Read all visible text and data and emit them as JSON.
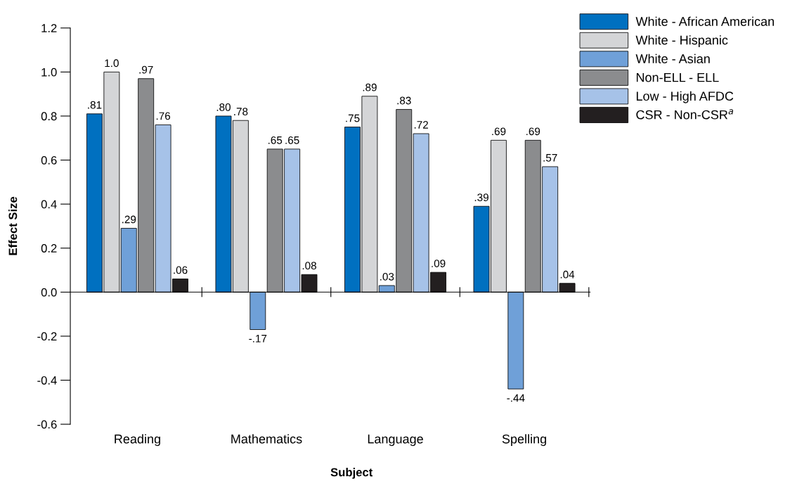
{
  "chart_data": {
    "type": "bar",
    "xlabel": "Subject",
    "ylabel": "Effect Size",
    "categories": [
      "Reading",
      "Mathematics",
      "Language",
      "Spelling"
    ],
    "series": [
      {
        "name": "White - African American",
        "color": "#0070c0",
        "values": [
          0.81,
          0.8,
          0.75,
          0.39
        ],
        "value_labels": [
          ".81",
          ".80",
          ".75",
          ".39"
        ]
      },
      {
        "name": "White - Hispanic",
        "color": "#d4d5d7",
        "values": [
          1.0,
          0.78,
          0.89,
          0.69
        ],
        "value_labels": [
          "1.0",
          ".78",
          ".89",
          ".69"
        ]
      },
      {
        "name": "White - Asian",
        "color": "#6fa0d8",
        "values": [
          0.29,
          -0.17,
          0.03,
          -0.44
        ],
        "value_labels": [
          ".29",
          "-.17",
          ".03",
          "-.44"
        ]
      },
      {
        "name": "Non-ELL - ELL",
        "color": "#8b8c8e",
        "values": [
          0.97,
          0.65,
          0.83,
          0.69
        ],
        "value_labels": [
          ".97",
          ".65",
          ".83",
          ".69"
        ]
      },
      {
        "name": "Low - High AFDC",
        "color": "#a6c2e8",
        "values": [
          0.76,
          0.65,
          0.72,
          0.57
        ],
        "value_labels": [
          ".76",
          ".65",
          ".72",
          ".57"
        ]
      },
      {
        "name": "CSR - Non-CSR$^{a}$",
        "color": "#231f20",
        "values": [
          0.06,
          0.08,
          0.09,
          0.04
        ],
        "value_labels": [
          ".06",
          ".08",
          ".09",
          ".04"
        ]
      }
    ],
    "ylim": [
      -0.6,
      1.2
    ],
    "yticks": [
      {
        "value": -0.6,
        "label": "-0.6"
      },
      {
        "value": -0.4,
        "label": "-0.4"
      },
      {
        "value": -0.2,
        "label": "-0.2"
      },
      {
        "value": 0,
        "label": "0.0"
      },
      {
        "value": 0.2,
        "label": "0.2"
      },
      {
        "value": 0.4,
        "label": "0.4"
      },
      {
        "value": 0.6,
        "label": "0.6"
      },
      {
        "value": 0.8,
        "label": "0.8"
      },
      {
        "value": 1.0,
        "label": "1.0"
      },
      {
        "value": 1.2,
        "label": "1.2"
      }
    ],
    "legend": "top right"
  }
}
